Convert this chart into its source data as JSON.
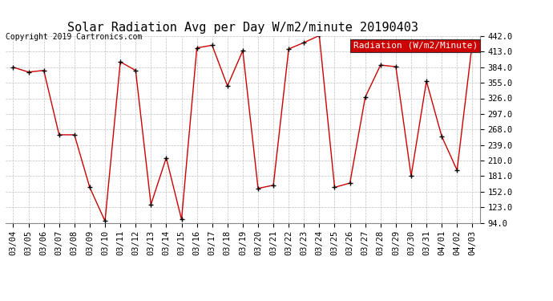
{
  "title": "Solar Radiation Avg per Day W/m2/minute 20190403",
  "copyright": "Copyright 2019 Cartronics.com",
  "legend_label": "Radiation (W/m2/Minute)",
  "dates": [
    "03/04",
    "03/05",
    "03/06",
    "03/07",
    "03/08",
    "03/09",
    "03/10",
    "03/11",
    "03/12",
    "03/13",
    "03/14",
    "03/15",
    "03/16",
    "03/17",
    "03/18",
    "03/19",
    "03/20",
    "03/21",
    "03/22",
    "03/23",
    "03/24",
    "03/25",
    "03/26",
    "03/27",
    "03/28",
    "03/29",
    "03/30",
    "03/31",
    "04/01",
    "04/02",
    "04/03"
  ],
  "values": [
    384,
    375,
    378,
    258,
    258,
    160,
    97,
    394,
    378,
    128,
    215,
    100,
    420,
    425,
    349,
    415,
    158,
    164,
    418,
    430,
    443,
    160,
    168,
    328,
    388,
    385,
    181,
    358,
    255,
    192,
    430
  ],
  "line_color": "#cc0000",
  "marker_color": "#000000",
  "bg_color": "#ffffff",
  "grid_color": "#c0c0c0",
  "ylim_min": 94.0,
  "ylim_max": 442.0,
  "yticks": [
    94.0,
    123.0,
    152.0,
    181.0,
    210.0,
    239.0,
    268.0,
    297.0,
    326.0,
    355.0,
    384.0,
    413.0,
    442.0
  ],
  "title_fontsize": 11,
  "copyright_fontsize": 7,
  "legend_fontsize": 8,
  "tick_fontsize": 7.5,
  "legend_bg": "#cc0000",
  "legend_text_color": "#ffffff"
}
